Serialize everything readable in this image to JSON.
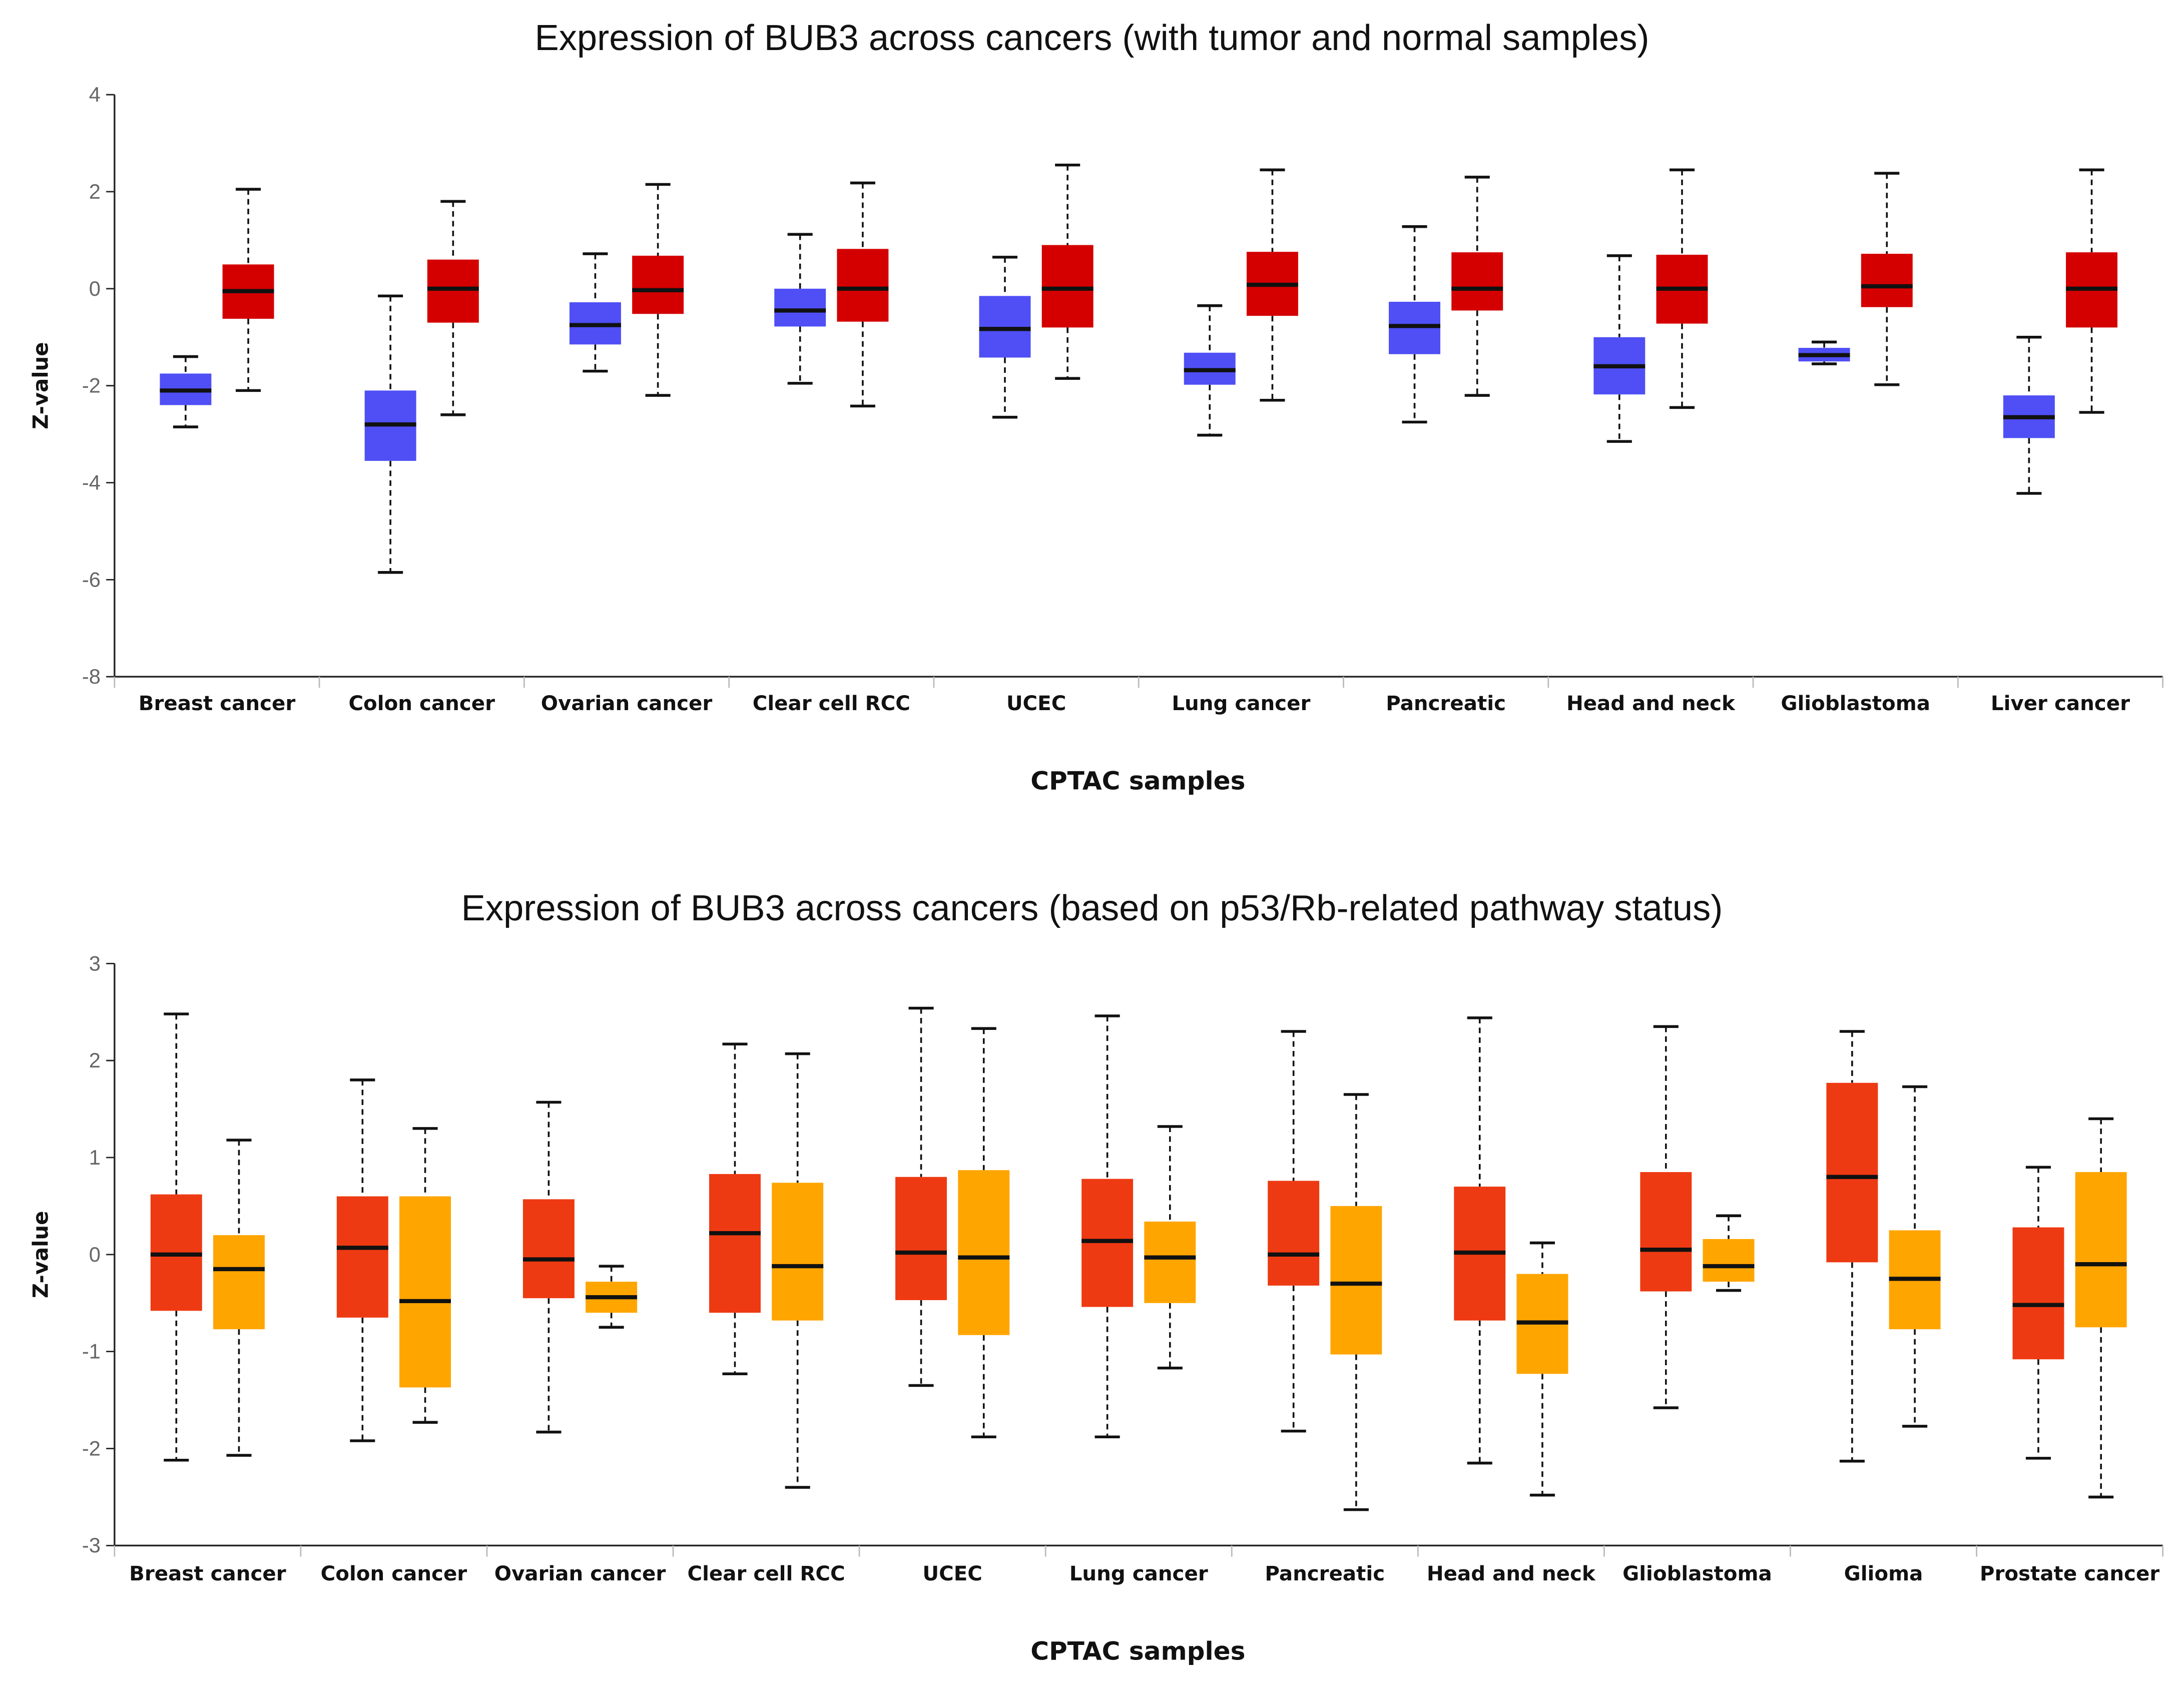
{
  "chart_data": [
    {
      "type": "box",
      "title": "Expression of BUB3 across cancers (with tumor and normal samples)",
      "xlabel": "CPTAC samples",
      "ylabel": "Z-value",
      "ylim": [
        -8,
        4
      ],
      "yticks": [
        4,
        2,
        0,
        -2,
        -4,
        -6,
        -8
      ],
      "grid": false,
      "legend": "none",
      "categories": [
        "Breast cancer",
        "Colon cancer",
        "Ovarian cancer",
        "Clear cell RCC",
        "UCEC",
        "Lung cancer",
        "Pancreatic",
        "Head and neck",
        "Glioblastoma",
        "Liver cancer"
      ],
      "series": [
        {
          "color": "#4f4ff5",
          "stats_order": "max,q3,median,q1,min",
          "values": [
            [
              -1.4,
              -1.75,
              -2.1,
              -2.4,
              -2.85
            ],
            [
              -0.15,
              -2.1,
              -2.8,
              -3.55,
              -5.85
            ],
            [
              0.72,
              -0.28,
              -0.75,
              -1.15,
              -1.7
            ],
            [
              1.12,
              0.0,
              -0.45,
              -0.78,
              -1.95
            ],
            [
              0.65,
              -0.15,
              -0.83,
              -1.42,
              -2.65
            ],
            [
              -0.35,
              -1.32,
              -1.68,
              -1.98,
              -3.02
            ],
            [
              1.28,
              -0.27,
              -0.77,
              -1.35,
              -2.75
            ],
            [
              0.68,
              -1.0,
              -1.6,
              -2.18,
              -3.15
            ],
            [
              -1.1,
              -1.22,
              -1.37,
              -1.5,
              -1.55
            ],
            [
              -1.0,
              -2.2,
              -2.65,
              -3.08,
              -4.22
            ]
          ]
        },
        {
          "color": "#d40000",
          "stats_order": "max,q3,median,q1,min",
          "values": [
            [
              2.05,
              0.5,
              -0.05,
              -0.62,
              -2.1
            ],
            [
              1.8,
              0.6,
              0.0,
              -0.7,
              -2.6
            ],
            [
              2.15,
              0.68,
              -0.03,
              -0.52,
              -2.2
            ],
            [
              2.18,
              0.82,
              0.0,
              -0.68,
              -2.42
            ],
            [
              2.55,
              0.9,
              0.0,
              -0.8,
              -1.85
            ],
            [
              2.45,
              0.76,
              0.08,
              -0.56,
              -2.3
            ],
            [
              2.3,
              0.75,
              0.0,
              -0.45,
              -2.2
            ],
            [
              2.45,
              0.7,
              0.0,
              -0.72,
              -2.45
            ],
            [
              2.38,
              0.72,
              0.05,
              -0.38,
              -1.98
            ],
            [
              2.45,
              0.75,
              0.0,
              -0.8,
              -2.55
            ]
          ]
        }
      ]
    },
    {
      "type": "box",
      "title": "Expression of BUB3 across cancers (based on p53/Rb-related pathway status)",
      "xlabel": "CPTAC samples",
      "ylabel": "Z-value",
      "ylim": [
        -3,
        3
      ],
      "yticks": [
        3,
        2,
        1,
        0,
        -1,
        -2,
        -3
      ],
      "grid": false,
      "legend": "none",
      "categories": [
        "Breast cancer",
        "Colon cancer",
        "Ovarian cancer",
        "Clear cell RCC",
        "UCEC",
        "Lung cancer",
        "Pancreatic",
        "Head and neck",
        "Glioblastoma",
        "Glioma",
        "Prostate cancer"
      ],
      "series": [
        {
          "color": "#ee3a12",
          "stats_order": "max,q3,median,q1,min",
          "values": [
            [
              2.48,
              0.62,
              0.0,
              -0.58,
              -2.12
            ],
            [
              1.8,
              0.6,
              0.07,
              -0.65,
              -1.92
            ],
            [
              1.57,
              0.57,
              -0.05,
              -0.45,
              -1.83
            ],
            [
              2.17,
              0.83,
              0.22,
              -0.6,
              -1.23
            ],
            [
              2.54,
              0.8,
              0.02,
              -0.47,
              -1.35
            ],
            [
              2.46,
              0.78,
              0.14,
              -0.54,
              -1.88
            ],
            [
              2.3,
              0.76,
              0.0,
              -0.32,
              -1.82
            ],
            [
              2.44,
              0.7,
              0.02,
              -0.68,
              -2.15
            ],
            [
              2.35,
              0.85,
              0.05,
              -0.38,
              -1.58
            ],
            [
              2.3,
              1.77,
              0.8,
              -0.08,
              -2.13
            ],
            [
              0.9,
              0.28,
              -0.52,
              -1.08,
              -2.1
            ]
          ]
        },
        {
          "color": "#ffa500",
          "stats_order": "max,q3,median,q1,min",
          "values": [
            [
              1.18,
              0.2,
              -0.15,
              -0.77,
              -2.07
            ],
            [
              1.3,
              0.6,
              -0.48,
              -1.37,
              -1.73
            ],
            [
              -0.12,
              -0.28,
              -0.44,
              -0.6,
              -0.75
            ],
            [
              2.07,
              0.74,
              -0.12,
              -0.68,
              -2.4
            ],
            [
              2.33,
              0.87,
              -0.03,
              -0.83,
              -1.88
            ],
            [
              1.32,
              0.34,
              -0.03,
              -0.5,
              -1.17
            ],
            [
              1.65,
              0.5,
              -0.3,
              -1.03,
              -2.63
            ],
            [
              0.12,
              -0.2,
              -0.7,
              -1.23,
              -2.48
            ],
            [
              0.4,
              0.16,
              -0.12,
              -0.28,
              -0.37
            ],
            [
              1.73,
              0.25,
              -0.25,
              -0.77,
              -1.77
            ],
            [
              1.4,
              0.85,
              -0.1,
              -0.75,
              -2.5
            ]
          ]
        }
      ]
    }
  ]
}
